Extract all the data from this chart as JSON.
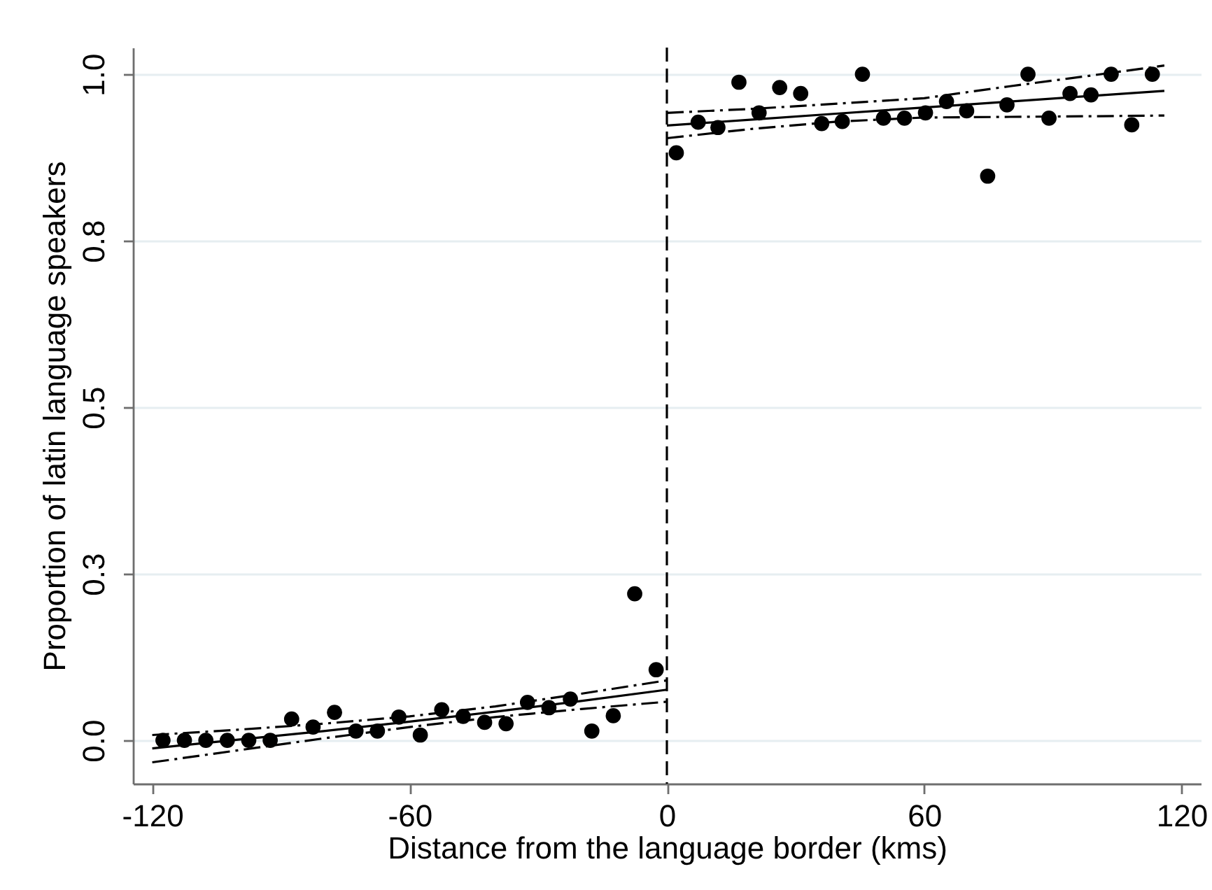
{
  "chart_data": {
    "type": "scatter",
    "xlabel": "Distance from the language border (kms)",
    "ylabel": "Proportion of latin language speakers",
    "xlim": [
      -124.5,
      124.5
    ],
    "xticks": [
      -120,
      -60,
      0,
      60,
      120
    ],
    "ylim": [
      -0.065,
      1.04
    ],
    "yticks": [
      {
        "value": 0,
        "label": "0.0"
      },
      {
        "value": 0.25,
        "label": "0.3"
      },
      0.5,
      {
        "value": 0.75,
        "label": "0.8"
      },
      {
        "value": 1,
        "label": "1.0"
      }
    ],
    "grid": "y",
    "series": [
      {
        "type": "scatter",
        "marker": "circle",
        "color": "#000000",
        "x": [
          -117.5,
          -112.5,
          -107.5,
          -102.5,
          -97.5,
          -92.5,
          -87.5,
          -82.5,
          -77.5,
          -72.5,
          -67.5,
          -62.5,
          -57.5,
          -52.5,
          -47.5,
          -42.5,
          -37.5,
          -32.5,
          -27.5,
          -22.5,
          -17.5,
          -12.5,
          -7.5,
          -2.5,
          2.2,
          7.3,
          11.9,
          16.8,
          21.5,
          26.3,
          31.2,
          36.1,
          40.9,
          45.6,
          50.5,
          55.4,
          60.3,
          65.2,
          69.9,
          74.8,
          79.3,
          84.2,
          89.1,
          94.0,
          98.9,
          103.6,
          108.4,
          113.2
        ],
        "values": [
          0,
          0,
          0,
          0,
          0,
          0,
          0.032,
          0.02,
          0.042,
          0.014,
          0.014,
          0.035,
          0.008,
          0.046,
          0.036,
          0.027,
          0.025,
          0.057,
          0.049,
          0.062,
          0.014,
          0.037,
          0.22,
          0.106,
          0.882,
          0.928,
          0.92,
          0.988,
          0.942,
          0.98,
          0.971,
          0.926,
          0.929,
          1.0,
          0.934,
          0.934,
          0.942,
          0.959,
          0.945,
          0.847,
          0.954,
          1.0,
          0.934,
          0.971,
          0.969,
          1.0,
          0.924,
          1.0
        ]
      },
      {
        "type": "line",
        "line_style": "solid",
        "color": "#000000",
        "x": [
          -120,
          -100,
          -80,
          -60,
          -40,
          -20,
          0
        ],
        "values": [
          -0.012,
          0.001,
          0.014,
          0.028,
          0.043,
          0.059,
          0.076
        ]
      },
      {
        "type": "line",
        "line_style": "dashed",
        "color": "#000000",
        "x": [
          -120,
          -100,
          -80,
          -60,
          -40,
          -20,
          0
        ],
        "values": [
          0.008,
          0.016,
          0.025,
          0.036,
          0.051,
          0.07,
          0.09
        ]
      },
      {
        "type": "line",
        "line_style": "dashed",
        "color": "#000000",
        "x": [
          -120,
          -100,
          -80,
          -60,
          -40,
          -20,
          0
        ],
        "values": [
          -0.033,
          -0.015,
          0.003,
          0.02,
          0.035,
          0.047,
          0.058
        ]
      },
      {
        "type": "line",
        "line_style": "solid",
        "color": "#000000",
        "x": [
          0,
          20,
          40,
          60,
          80,
          100,
          116
        ],
        "values": [
          0.923,
          0.932,
          0.941,
          0.95,
          0.959,
          0.968,
          0.975
        ]
      },
      {
        "type": "line",
        "line_style": "dashed",
        "color": "#000000",
        "x": [
          0,
          20,
          40,
          60,
          80,
          100,
          116
        ],
        "values": [
          0.942,
          0.948,
          0.956,
          0.964,
          0.982,
          0.999,
          1.013
        ]
      },
      {
        "type": "line",
        "line_style": "dashed",
        "color": "#000000",
        "x": [
          0,
          20,
          40,
          60,
          80,
          100,
          116
        ],
        "values": [
          0.904,
          0.918,
          0.929,
          0.935,
          0.936,
          0.937,
          0.938
        ]
      }
    ],
    "ref_lines": [
      {
        "axis": "x",
        "value": 0,
        "color": "#000000",
        "line_style": "dashed"
      }
    ]
  }
}
